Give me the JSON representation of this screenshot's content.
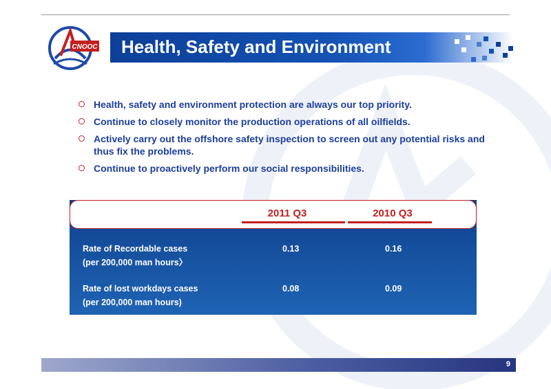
{
  "slide": {
    "title": "Health, Safety and Environment",
    "logo_text": "CNOOC",
    "page_number": "9"
  },
  "bullets": [
    "Health, safety and environment protection are always our top priority.",
    "Continue to closely monitor the production operations of all oilfields.",
    "Actively carry out the offshore safety inspection to screen out any potential risks and thus fix the problems.",
    "Continue to proactively perform our social responsibilities."
  ],
  "table": {
    "columns": [
      "2011 Q3",
      "2010 Q3"
    ],
    "rows": [
      {
        "label_line1": "Rate of Recordable cases",
        "label_line2": "(per 200,000 man hours〉",
        "v2011": "0.13",
        "v2010": "0.16"
      },
      {
        "label_line1": "Rate of lost workdays cases",
        "label_line2": "(per 200,000 man hours)",
        "v2011": "0.08",
        "v2010": "0.09"
      }
    ]
  },
  "colors": {
    "brand_blue": "#1452b4",
    "text_blue": "#1b3e9c",
    "accent_red": "#c31f1f"
  }
}
